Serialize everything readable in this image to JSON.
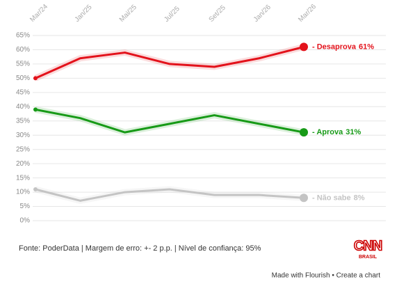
{
  "chart_data": {
    "type": "line",
    "categories": [
      "Mar/24",
      "Jan/25",
      "Mai/25",
      "Jul/25",
      "Set/25",
      "Jan/26",
      "Mar/26"
    ],
    "series": [
      {
        "name": "Desaprova",
        "color": "#e3121b",
        "values": [
          50,
          57,
          59,
          55,
          54,
          57,
          61
        ],
        "value_labels": [
          null,
          null,
          null,
          null,
          null,
          null,
          "61%"
        ]
      },
      {
        "name": "Aprova",
        "color": "#179a17",
        "values": [
          39,
          36,
          31,
          34,
          37,
          34,
          31
        ],
        "value_labels": [
          null,
          null,
          null,
          null,
          null,
          null,
          "31%"
        ]
      },
      {
        "name": "Não sabe",
        "color": "#c4c4c4",
        "values": [
          11,
          7,
          10,
          11,
          9,
          9,
          8
        ],
        "value_labels": [
          null,
          null,
          null,
          null,
          null,
          null,
          "8%"
        ]
      }
    ],
    "ylim": [
      0,
      65
    ],
    "yticks": [
      {
        "value": 0,
        "label": "0%"
      },
      {
        "value": 5,
        "label": "5%"
      },
      {
        "value": 10,
        "label": "10%"
      },
      {
        "value": 15,
        "label": "15%"
      },
      {
        "value": 20,
        "label": "20%"
      },
      {
        "value": 25,
        "label": "25%"
      },
      {
        "value": 30,
        "label": "30%"
      },
      {
        "value": 35,
        "label": "35%"
      },
      {
        "value": 40,
        "label": "40%"
      },
      {
        "value": 45,
        "label": "45%"
      },
      {
        "value": 50,
        "label": "50%"
      },
      {
        "value": 55,
        "label": "55%"
      },
      {
        "value": 60,
        "label": "60%"
      },
      {
        "value": 65,
        "label": "65%"
      }
    ],
    "grid": true,
    "source": "Fonte: PoderData | Margem de erro: +- 2 p.p. | Nível de confiança: 95%",
    "logo": {
      "main": "CNN",
      "sub": "BRASIL"
    },
    "footer": "Made with Flourish • Create a chart"
  }
}
